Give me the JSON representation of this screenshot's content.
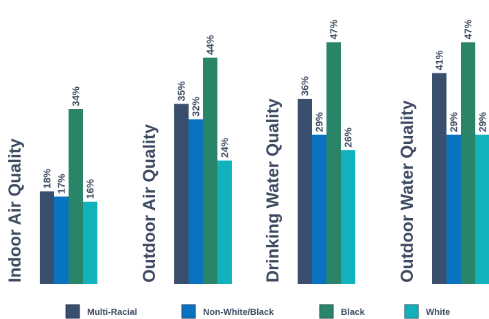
{
  "chart_data": {
    "type": "bar",
    "categories": [
      "Indoor Air Quality",
      "Outdoor Air Quality",
      "Drinking Water Quality",
      "Outdoor Water Quality"
    ],
    "series": [
      {
        "name": "Multi-Racial",
        "color": "#3a4e6e",
        "values": [
          18,
          35,
          36,
          41
        ],
        "labels": [
          "18%",
          "35%",
          "36%",
          "41%"
        ]
      },
      {
        "name": "Non-White/Black",
        "color": "#0a73bf",
        "values": [
          17,
          32,
          29,
          29
        ],
        "labels": [
          "17%",
          "32%",
          "29%",
          "29%"
        ]
      },
      {
        "name": "Black",
        "color": "#2a8468",
        "values": [
          34,
          44,
          47,
          47
        ],
        "labels": [
          "34%",
          "44%",
          "47%",
          "47%"
        ]
      },
      {
        "name": "White",
        "color": "#12b2bd",
        "values": [
          16,
          24,
          26,
          29
        ],
        "labels": [
          "16%",
          "24%",
          "26%",
          "29%"
        ]
      }
    ],
    "title": "",
    "xlabel": "",
    "ylabel": "",
    "ylim": [
      0,
      47
    ],
    "grid": false,
    "legend": "bottom"
  }
}
